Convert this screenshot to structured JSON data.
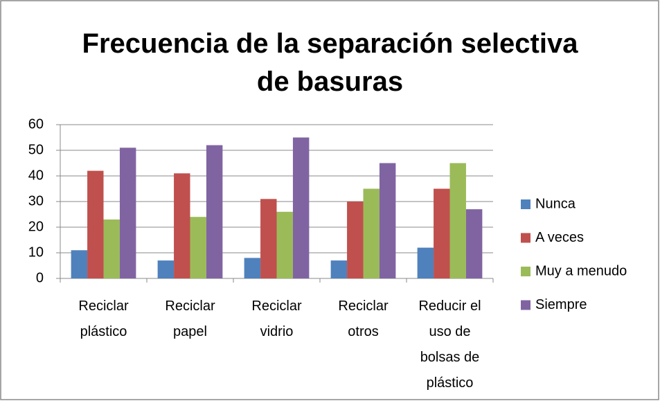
{
  "chart_data": {
    "type": "bar",
    "title": "Frecuencia de la separación selectiva de basuras",
    "categories": [
      "Reciclar plástico",
      "Reciclar papel",
      "Reciclar vidrio",
      "Reciclar otros",
      "Reducir el uso de bolsas de plástico"
    ],
    "series": [
      {
        "name": "Nunca",
        "color": "#4f81bd",
        "values": [
          11,
          7,
          8,
          7,
          12
        ]
      },
      {
        "name": "A veces",
        "color": "#c0504d",
        "values": [
          42,
          41,
          31,
          30,
          35
        ]
      },
      {
        "name": "Muy a menudo",
        "color": "#9bbb59",
        "values": [
          23,
          24,
          26,
          35,
          45
        ]
      },
      {
        "name": "Siempre",
        "color": "#8064a2",
        "values": [
          51,
          52,
          55,
          45,
          27
        ]
      }
    ],
    "ylim": [
      0,
      60
    ],
    "yticks": [
      0,
      10,
      20,
      30,
      40,
      50,
      60
    ],
    "grid": true,
    "legend": "right"
  }
}
